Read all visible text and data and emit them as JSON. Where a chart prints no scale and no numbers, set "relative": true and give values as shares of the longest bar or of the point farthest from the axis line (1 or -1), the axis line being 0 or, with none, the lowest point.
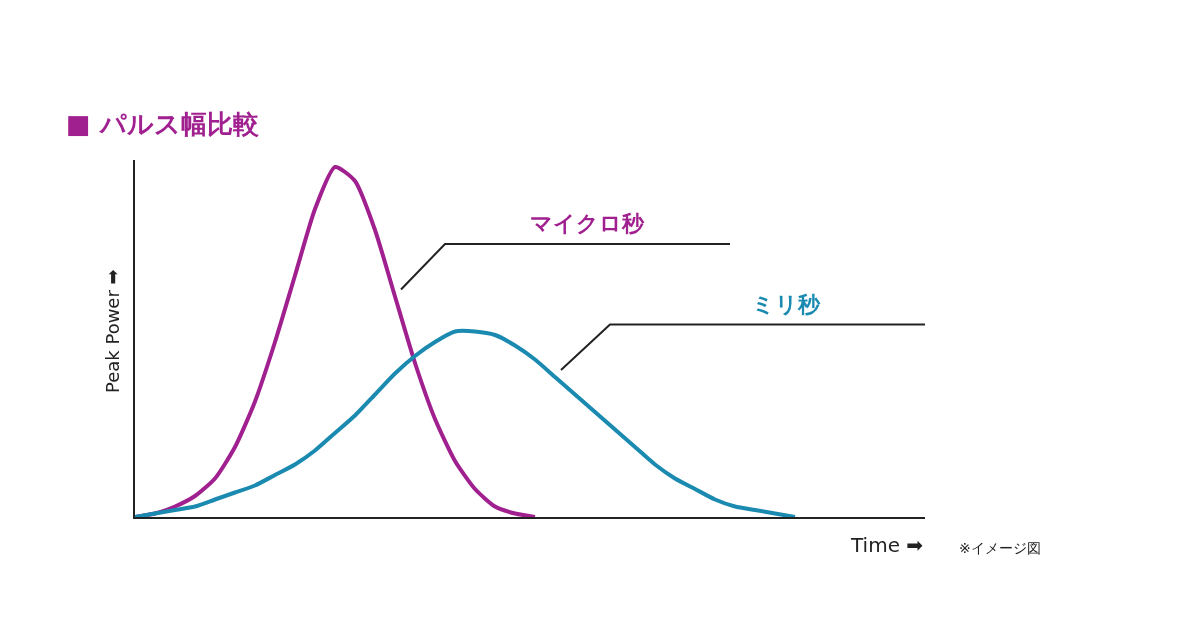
{
  "chart_data": {
    "type": "line",
    "relative": true,
    "title": "■ パルス幅比較",
    "xlabel": "Time ➡",
    "ylabel": "Peak Power ➡",
    "annotations": [
      "※イメージ図"
    ],
    "legend": false,
    "marker": "none",
    "line_style": "solid",
    "categories": [
      null,
      null,
      null,
      null,
      null,
      null,
      null,
      null,
      null,
      null,
      null,
      null,
      null,
      null,
      null,
      null,
      null,
      null,
      null,
      null,
      null,
      null,
      null,
      null,
      null,
      null,
      null,
      null,
      null,
      null,
      null,
      null,
      null,
      null,
      null,
      null,
      null,
      null,
      null,
      null
    ],
    "series": [
      {
        "name": "マイクロ秒",
        "color": "#a0208f",
        "values": [
          0.0,
          0.01,
          0.03,
          0.06,
          0.11,
          0.2,
          0.33,
          0.5,
          0.69,
          0.88,
          1.0,
          0.96,
          0.82,
          0.63,
          0.44,
          0.28,
          0.16,
          0.08,
          0.03,
          0.01,
          0.0,
          null,
          null,
          null,
          null,
          null,
          null,
          null,
          null,
          null,
          null,
          null,
          null,
          null,
          null,
          null,
          null,
          null,
          null,
          null
        ]
      },
      {
        "name": "ミリ秒",
        "color": "#1a8ab0",
        "values": [
          0.0,
          0.01,
          0.02,
          0.03,
          0.05,
          0.07,
          0.09,
          0.12,
          0.15,
          0.19,
          0.24,
          0.29,
          0.35,
          0.41,
          0.46,
          0.5,
          0.53,
          0.53,
          0.52,
          0.49,
          0.45,
          0.4,
          0.35,
          0.3,
          0.25,
          0.2,
          0.15,
          0.11,
          0.08,
          0.05,
          0.03,
          0.02,
          0.01,
          0.0,
          null,
          null,
          null,
          null,
          null,
          null
        ]
      }
    ]
  }
}
